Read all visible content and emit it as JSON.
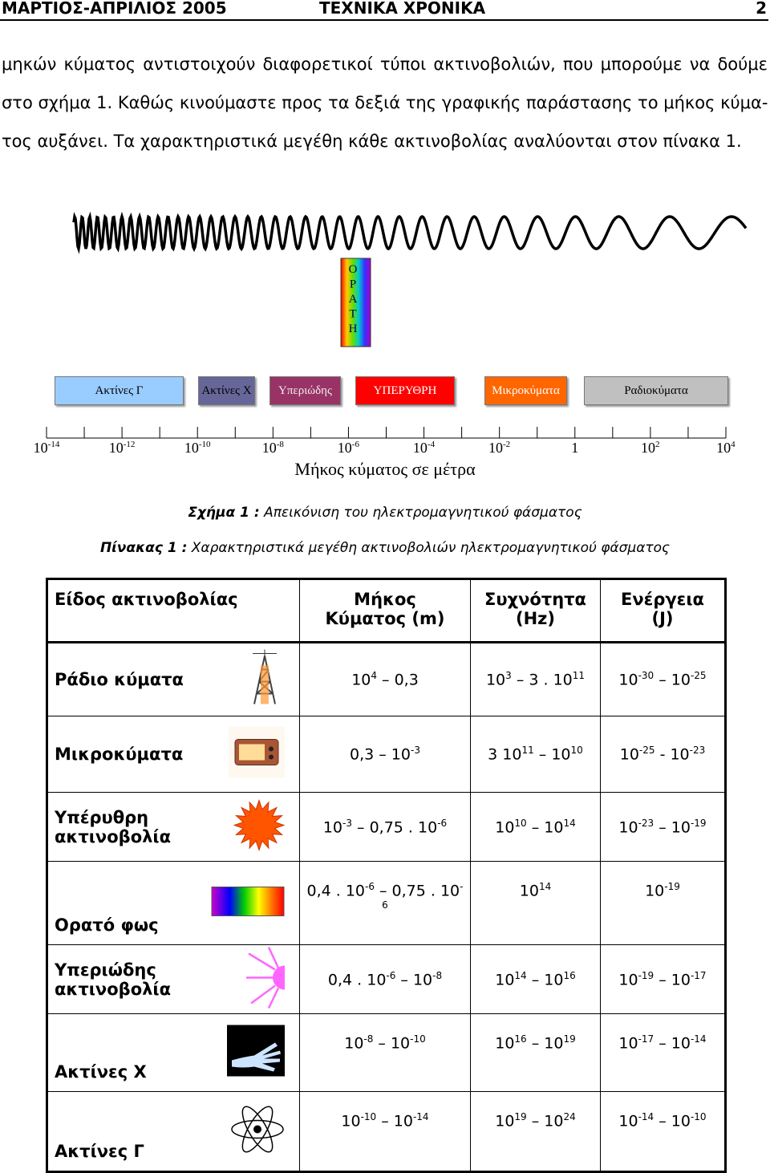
{
  "header": {
    "left": "ΜΑΡΤΙΟΣ-ΑΠΡΙΛΙΟΣ 2005",
    "center": "ΤΕΧΝΙΚΑ ΧΡΟΝΙΚΑ",
    "page": "2"
  },
  "paragraph": {
    "lines": [
      "μηκών κύματος αντιστοιχούν διαφορετικοί τύποι ακτινοβολιών, που μπορούμε να δούμε",
      "στο σχήμα 1. Καθώς κινούμαστε προς τα δεξιά της γραφικής παράστασης το μήκος κύμα-",
      "τος αυξάνει. Τα χαρακτηριστικά μεγέθη κάθε ακτινοβολίας αναλύονται στον πίνακα 1."
    ]
  },
  "figure": {
    "visible_letters": [
      "Ο",
      "Ρ",
      "Α",
      "Τ",
      "Η"
    ],
    "bands": [
      "Ακτίνες Γ",
      "Ακτίνες Χ",
      "Υπεριώδης",
      "ΥΠΕΡΥΘΡΗ",
      "Μικροκύματα",
      "Ραδιοκύματα"
    ],
    "scale_labels": [
      [
        "10",
        {
          "sup": "-14"
        }
      ],
      [
        "10",
        {
          "sup": "-12"
        }
      ],
      [
        "10",
        {
          "sup": "-10"
        }
      ],
      [
        "10",
        {
          "sup": "-8"
        }
      ],
      [
        "10",
        {
          "sup": "-6"
        }
      ],
      [
        "10",
        {
          "sup": "-4"
        }
      ],
      [
        "10",
        {
          "sup": "-2"
        }
      ],
      [
        "1"
      ],
      [
        "10",
        {
          "sup": "2"
        }
      ],
      [
        "10",
        {
          "sup": "4"
        }
      ]
    ],
    "axis_label": "Μήκος κύματος σε μέτρα",
    "caption": {
      "label": "Σχήμα 1 :",
      "text": "Απεικόνιση του ηλεκτρομαγνητικού φάσματος"
    }
  },
  "table_caption": {
    "label": "Πίνακας 1 :",
    "text": "Χαρακτηριστικά μεγέθη ακτινοβολιών ηλεκτρομαγνητικού φάσματος"
  },
  "table": {
    "headers": [
      [
        "Είδος ακτινοβολίας"
      ],
      [
        "Μήκος",
        "Κύματος (m)"
      ],
      [
        "Συχνότητα",
        "(Hz)"
      ],
      [
        "Ενέργεια",
        "(J)"
      ]
    ],
    "rows": [
      {
        "name": [
          "Ράδιο κύματα"
        ],
        "cells": [
          [
            "10",
            {
              "sup": "4"
            },
            " – 0,3"
          ],
          [
            "10",
            {
              "sup": "3"
            },
            " – 3 . 10",
            {
              "sup": "11"
            }
          ],
          [
            "10",
            {
              "sup": "-30"
            },
            " – 10",
            {
              "sup": "-25"
            }
          ]
        ]
      },
      {
        "name": [
          "Μικροκύματα"
        ],
        "cells": [
          [
            "0,3 – 10",
            {
              "sup": "-3"
            }
          ],
          [
            "3 10",
            {
              "sup": "11"
            },
            " – 10",
            {
              "sup": "10"
            }
          ],
          [
            "10",
            {
              "sup": "-25"
            },
            " - 10",
            {
              "sup": "-23"
            }
          ]
        ]
      },
      {
        "name": [
          "Υπέρυθρη",
          "ακτινοβολία"
        ],
        "cells": [
          [
            "10",
            {
              "sup": "-3"
            },
            " – 0,75 . 10",
            {
              "sup": "-6"
            }
          ],
          [
            "10",
            {
              "sup": "10"
            },
            " – 10",
            {
              "sup": "14"
            }
          ],
          [
            "10",
            {
              "sup": "-23"
            },
            " – 10",
            {
              "sup": "-19"
            }
          ]
        ]
      },
      {
        "name": [
          "Ορατό φως"
        ],
        "cells": [
          [
            "0,4 . 10",
            {
              "sup": "-6"
            },
            " – 0,75 . 10",
            {
              "sup": "-6"
            }
          ],
          [
            "10",
            {
              "sup": "14"
            }
          ],
          [
            "10",
            {
              "sup": "-19"
            }
          ]
        ]
      },
      {
        "name": [
          "Υπεριώδης",
          "ακτινοβολία"
        ],
        "cells": [
          [
            "0,4 . 10",
            {
              "sup": "-6"
            },
            " – 10",
            {
              "sup": "-8"
            }
          ],
          [
            "10",
            {
              "sup": "14"
            },
            " – 10",
            {
              "sup": "16"
            }
          ],
          [
            "10",
            {
              "sup": "-19"
            },
            " – 10",
            {
              "sup": "-17"
            }
          ]
        ]
      },
      {
        "name": [
          "Ακτίνες  Χ"
        ],
        "cells": [
          [
            "10",
            {
              "sup": "-8"
            },
            " – 10",
            {
              "sup": "-10"
            }
          ],
          [
            "10",
            {
              "sup": "16"
            },
            " – 10",
            {
              "sup": "19"
            }
          ],
          [
            "10",
            {
              "sup": "-17"
            },
            " – 10",
            {
              "sup": "-14"
            }
          ]
        ]
      },
      {
        "name": [
          "Ακτίνες  Γ"
        ],
        "cells": [
          [
            "10",
            {
              "sup": "-10"
            },
            " – 10",
            {
              "sup": "-14"
            }
          ],
          [
            "10",
            {
              "sup": "19"
            },
            " – 10",
            {
              "sup": "24"
            }
          ],
          [
            "10",
            {
              "sup": "-14"
            },
            " – 10",
            {
              "sup": "-10"
            }
          ]
        ]
      }
    ]
  }
}
